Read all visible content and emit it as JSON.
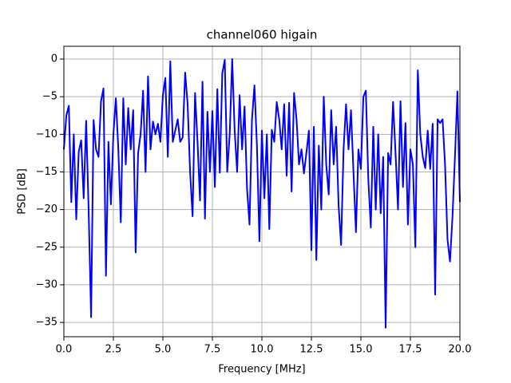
{
  "chart_data": {
    "type": "line",
    "title": "channel060 higain",
    "x_label": "Frequency [MHz]",
    "y_label": "PSD [dB]",
    "x": [
      0,
      0.125,
      0.25,
      0.375,
      0.5,
      0.625,
      0.75,
      0.875,
      1,
      1.125,
      1.25,
      1.375,
      1.5,
      1.625,
      1.75,
      1.875,
      2,
      2.125,
      2.25,
      2.375,
      2.5,
      2.625,
      2.75,
      2.875,
      3,
      3.125,
      3.25,
      3.375,
      3.5,
      3.625,
      3.75,
      3.875,
      4,
      4.125,
      4.25,
      4.375,
      4.5,
      4.625,
      4.75,
      4.875,
      5,
      5.125,
      5.25,
      5.375,
      5.5,
      5.625,
      5.75,
      5.875,
      6,
      6.125,
      6.25,
      6.375,
      6.5,
      6.625,
      6.75,
      6.875,
      7,
      7.125,
      7.25,
      7.375,
      7.5,
      7.625,
      7.75,
      7.875,
      8,
      8.125,
      8.25,
      8.375,
      8.5,
      8.625,
      8.75,
      8.875,
      9,
      9.125,
      9.25,
      9.375,
      9.5,
      9.625,
      9.75,
      9.875,
      10,
      10.125,
      10.25,
      10.375,
      10.5,
      10.625,
      10.75,
      10.875,
      11,
      11.125,
      11.25,
      11.375,
      11.5,
      11.625,
      11.75,
      11.875,
      12,
      12.125,
      12.25,
      12.375,
      12.5,
      12.625,
      12.75,
      12.875,
      13,
      13.125,
      13.25,
      13.375,
      13.5,
      13.625,
      13.75,
      13.875,
      14,
      14.125,
      14.25,
      14.375,
      14.5,
      14.625,
      14.75,
      14.875,
      15,
      15.125,
      15.25,
      15.375,
      15.5,
      15.625,
      15.75,
      15.875,
      16,
      16.125,
      16.25,
      16.375,
      16.5,
      16.625,
      16.75,
      16.875,
      17,
      17.125,
      17.25,
      17.375,
      17.5,
      17.625,
      17.75,
      17.875,
      18,
      18.125,
      18.25,
      18.375,
      18.5,
      18.625,
      18.75,
      18.875,
      19,
      19.125,
      19.25,
      19.375,
      19.5,
      19.625,
      19.75,
      19.875,
      20
    ],
    "series": [
      {
        "name": "channel060",
        "color": "#0000ff",
        "values": [
          -12,
          -7.5,
          -6.2,
          -19,
          -10,
          -21.3,
          -12.3,
          -10.8,
          -18.5,
          -8.2,
          -20,
          -34.3,
          -8.1,
          -12,
          -13,
          -5.6,
          -3.9,
          -28.8,
          -11,
          -19.3,
          -10,
          -5.2,
          -12,
          -21.7,
          -5.2,
          -14,
          -6.5,
          -12,
          -6.8,
          -25.7,
          -12.5,
          -10,
          -4.2,
          -15,
          -2.3,
          -12,
          -8.3,
          -10,
          -8.6,
          -11,
          -4.8,
          -2.5,
          -13,
          -0.3,
          -11,
          -9.5,
          -8,
          -11,
          -10.4,
          -1.8,
          -6,
          -15,
          -20.9,
          -4.5,
          -11,
          -18.8,
          -3,
          -21.2,
          -7,
          -15,
          -6.9,
          -17,
          -4,
          -15.1,
          -1.9,
          -0.1,
          -15,
          -10,
          0,
          -9.5,
          -15,
          -4.8,
          -12,
          -6.3,
          -17.2,
          -22,
          -8,
          -3.5,
          -11.5,
          -24.2,
          -9.5,
          -18.5,
          -10,
          -22.6,
          -9.4,
          -11,
          -5.7,
          -8,
          -12,
          -6,
          -15.5,
          -5.8,
          -17.6,
          -4.5,
          -8,
          -14,
          -12,
          -15.2,
          -12.4,
          -9.5,
          -25.4,
          -9,
          -26.7,
          -11.5,
          -20,
          -5,
          -14,
          -18,
          -6.8,
          -14,
          -9,
          -19.5,
          -24.7,
          -12,
          -6,
          -12,
          -6.8,
          -15,
          -23,
          -12,
          -14.6,
          -5,
          -4.2,
          -16,
          -22.4,
          -9,
          -20,
          -10,
          -20.5,
          -13,
          -35.7,
          -12.5,
          -14,
          -5.7,
          -12.5,
          -20,
          -5.6,
          -17,
          -8.5,
          -22,
          -12,
          -14,
          -25,
          -1.5,
          -10,
          -13,
          -14.5,
          -9.5,
          -14.6,
          -8.6,
          -31.3,
          -8,
          -8.5,
          -8,
          -14,
          -24,
          -26.9,
          -21,
          -13,
          -4.3,
          -19
        ]
      }
    ],
    "xlim": [
      0,
      20
    ],
    "ylim": [
      -36.9,
      1.7
    ],
    "xticks": [
      {
        "value": 0,
        "label": "0.0"
      },
      2.5,
      {
        "value": 5,
        "label": "5.0"
      },
      7.5,
      {
        "value": 10,
        "label": "10.0"
      },
      12.5,
      {
        "value": 15,
        "label": "15.0"
      },
      17.5,
      {
        "value": 20,
        "label": "20.0"
      }
    ],
    "yticks": [
      {
        "value": -35,
        "label": "−35"
      },
      {
        "value": -30,
        "label": "−30"
      },
      {
        "value": -25,
        "label": "−25"
      },
      {
        "value": -20,
        "label": "−20"
      },
      {
        "value": -15,
        "label": "−15"
      },
      {
        "value": -10,
        "label": "−10"
      },
      {
        "value": -5,
        "label": "−5"
      },
      0
    ],
    "grid": true
  }
}
